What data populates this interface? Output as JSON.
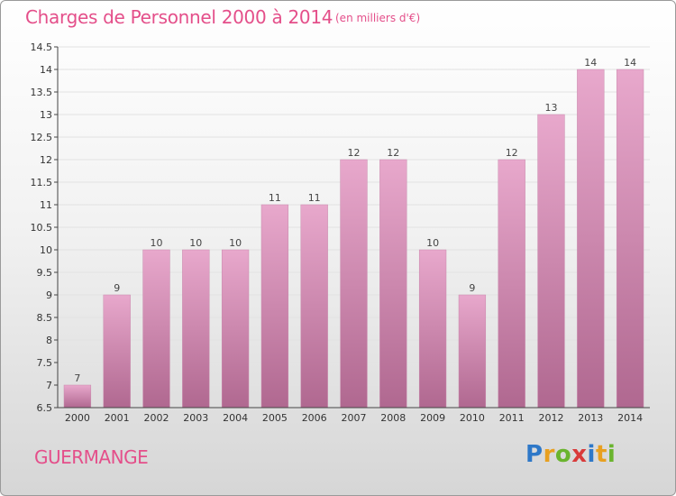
{
  "title": "Charges de Personnel 2000 à 2014",
  "subtitle": "(en milliers d'€)",
  "commune": "GUERMANGE",
  "logo": {
    "letters": [
      "P",
      "r",
      "o",
      "x",
      "i",
      "t",
      "i"
    ],
    "colors": [
      "#2e78c8",
      "#e8a020",
      "#6ab42e",
      "#d93a3a",
      "#2e78c8",
      "#e8a020",
      "#6ab42e"
    ]
  },
  "colors": {
    "bar_top": "#e8a8cc",
    "bar_bottom": "#b06890",
    "text_accent": "#e44f8a",
    "axis": "#444444"
  },
  "chart_data": {
    "type": "bar",
    "categories": [
      "2000",
      "2001",
      "2002",
      "2003",
      "2004",
      "2005",
      "2006",
      "2007",
      "2008",
      "2009",
      "2010",
      "2011",
      "2012",
      "2013",
      "2014"
    ],
    "values": [
      7,
      9,
      10,
      10,
      10,
      11,
      11,
      12,
      12,
      10,
      9,
      12,
      13,
      14,
      14
    ],
    "labels": [
      "7",
      "9",
      "10",
      "10",
      "10",
      "11",
      "11",
      "12",
      "12",
      "10",
      "9",
      "12",
      "13",
      "14",
      "14"
    ],
    "ylim": [
      6.5,
      14.5
    ],
    "yticks": [
      "6.5",
      "7",
      "7.5",
      "8",
      "8.5",
      "9",
      "9.5",
      "10",
      "10.5",
      "11",
      "11.5",
      "12",
      "12.5",
      "13",
      "13.5",
      "14",
      "14.5"
    ],
    "grid": true
  }
}
